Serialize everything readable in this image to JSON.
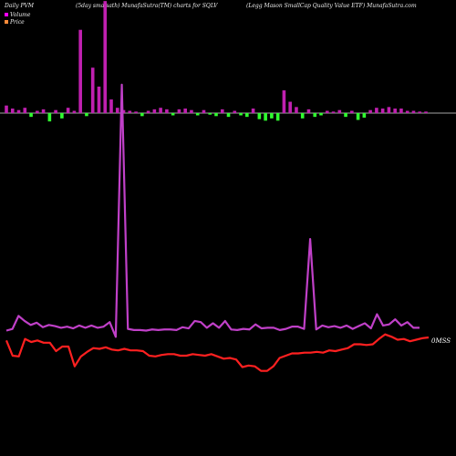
{
  "header": {
    "left": "Daily PVM",
    "middle": "(5day sma sath) MunafaSutra(TM) charts for SQLV",
    "right": "(Legg Mason  SmallCap Quality Value   ETF) MunafaSutra.com"
  },
  "legend": {
    "items": [
      {
        "label": "Volume",
        "color": "#ff00ff"
      },
      {
        "label": "Price",
        "color": "#ff8c3a"
      }
    ]
  },
  "colors": {
    "volume_line": "#c040c8",
    "price_line": "#ff2020",
    "bar_up": "#c020b0",
    "bar_down": "#30ff30",
    "baseline": "#dddddd"
  },
  "chart_data": {
    "type": "bar",
    "xlabel": "",
    "ylabel": "",
    "end_label": "0MSS",
    "grid": false,
    "legend_placement": "top-left",
    "bars": [
      {
        "v": 10
      },
      {
        "v": 6
      },
      {
        "v": 4
      },
      {
        "v": 7
      },
      {
        "v": -5
      },
      {
        "v": 3
      },
      {
        "v": 5
      },
      {
        "v": -11
      },
      {
        "v": 4
      },
      {
        "v": -7
      },
      {
        "v": 7
      },
      {
        "v": 3
      },
      {
        "v": 110
      },
      {
        "v": -4
      },
      {
        "v": 60
      },
      {
        "v": 35
      },
      {
        "v": 148
      },
      {
        "v": 18
      },
      {
        "v": 7
      },
      {
        "v": 4
      },
      {
        "v": 3
      },
      {
        "v": 2
      },
      {
        "v": -4
      },
      {
        "v": 3
      },
      {
        "v": 5
      },
      {
        "v": 7
      },
      {
        "v": 5
      },
      {
        "v": -3
      },
      {
        "v": 5
      },
      {
        "v": 6
      },
      {
        "v": 4
      },
      {
        "v": -3
      },
      {
        "v": 4
      },
      {
        "v": -2
      },
      {
        "v": -4
      },
      {
        "v": 5
      },
      {
        "v": -5
      },
      {
        "v": 3
      },
      {
        "v": -3
      },
      {
        "v": -5
      },
      {
        "v": 6
      },
      {
        "v": -8
      },
      {
        "v": -10
      },
      {
        "v": -7
      },
      {
        "v": -10
      },
      {
        "v": 30
      },
      {
        "v": 15
      },
      {
        "v": 8
      },
      {
        "v": -7
      },
      {
        "v": 5
      },
      {
        "v": -5
      },
      {
        "v": -3
      },
      {
        "v": 3
      },
      {
        "v": 2
      },
      {
        "v": 4
      },
      {
        "v": -5
      },
      {
        "v": 3
      },
      {
        "v": -9
      },
      {
        "v": -6
      },
      {
        "v": 4
      },
      {
        "v": 7
      },
      {
        "v": 6
      },
      {
        "v": 8
      },
      {
        "v": 6
      },
      {
        "v": 6
      },
      {
        "v": 3
      },
      {
        "v": 3
      },
      {
        "v": 2
      },
      {
        "v": 2
      }
    ],
    "volume_line": [
      25,
      28,
      51,
      42,
      35,
      39,
      31,
      35,
      33,
      30,
      32,
      29,
      34,
      30,
      34,
      30,
      32,
      40,
      14,
      460,
      28,
      26,
      26,
      25,
      27,
      26,
      27,
      27,
      26,
      31,
      29,
      42,
      40,
      30,
      38,
      30,
      42,
      27,
      26,
      28,
      27,
      36,
      29,
      30,
      30,
      26,
      28,
      32,
      32,
      28,
      187,
      27,
      34,
      31,
      33,
      30,
      34,
      28,
      33,
      38,
      29,
      54,
      34,
      36,
      45,
      34,
      40,
      30,
      30
    ],
    "price_line": [
      17.6,
      15.6,
      15.5,
      17.8,
      17.4,
      17.6,
      17.3,
      17.3,
      16.2,
      16.8,
      16.8,
      14.2,
      15.5,
      16.1,
      16.6,
      16.5,
      16.7,
      16.4,
      16.3,
      16.5,
      16.3,
      16.3,
      16.2,
      15.6,
      15.5,
      15.7,
      15.8,
      15.8,
      15.6,
      15.6,
      15.8,
      15.7,
      15.6,
      15.8,
      15.5,
      15.2,
      15.3,
      15.1,
      14.1,
      14.3,
      14.2,
      13.6,
      13.6,
      14.2,
      15.3,
      15.6,
      15.9,
      15.9,
      16.0,
      16.0,
      16.1,
      16.0,
      16.3,
      16.2,
      16.4,
      16.6,
      17.1,
      17.1,
      17.0,
      17.1,
      17.8,
      18.4,
      18.1,
      17.7,
      17.8,
      17.5,
      17.7,
      17.9,
      18.0
    ]
  }
}
